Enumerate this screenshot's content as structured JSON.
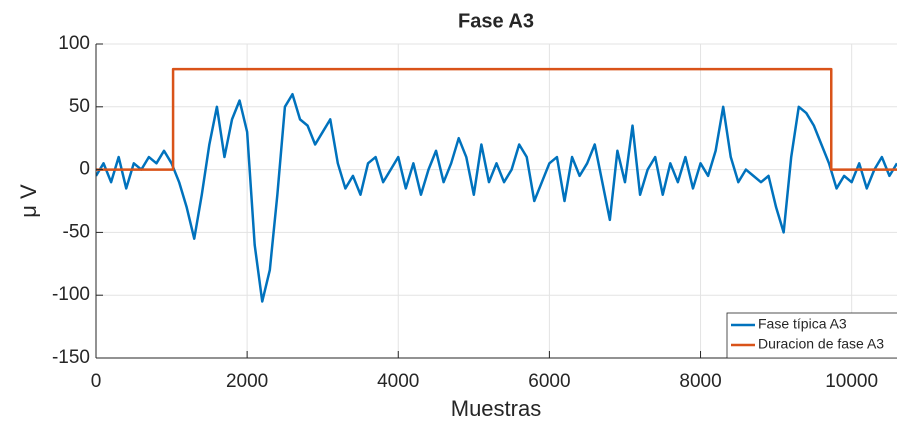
{
  "chart_data": {
    "type": "line",
    "title": "Fase A3",
    "xlabel": "Muestras",
    "ylabel": "μ V",
    "xlim": [
      0,
      10600
    ],
    "ylim": [
      -150,
      100
    ],
    "xticks": [
      0,
      2000,
      4000,
      6000,
      8000,
      10000
    ],
    "yticks": [
      -150,
      -100,
      -50,
      0,
      50,
      100
    ],
    "grid": true,
    "legend": "southeast",
    "series": [
      {
        "name": "Fase típica A3",
        "color": "#0072bd",
        "x": [
          0,
          100,
          200,
          300,
          400,
          500,
          600,
          700,
          800,
          900,
          1000,
          1100,
          1200,
          1300,
          1400,
          1500,
          1600,
          1700,
          1800,
          1900,
          2000,
          2100,
          2200,
          2300,
          2400,
          2500,
          2600,
          2700,
          2800,
          2900,
          3000,
          3100,
          3200,
          3300,
          3400,
          3500,
          3600,
          3700,
          3800,
          3900,
          4000,
          4100,
          4200,
          4300,
          4400,
          4500,
          4600,
          4700,
          4800,
          4900,
          5000,
          5100,
          5200,
          5300,
          5400,
          5500,
          5600,
          5700,
          5800,
          5900,
          6000,
          6100,
          6200,
          6300,
          6400,
          6500,
          6600,
          6700,
          6800,
          6900,
          7000,
          7100,
          7200,
          7300,
          7400,
          7500,
          7600,
          7700,
          7800,
          7900,
          8000,
          8100,
          8200,
          8300,
          8400,
          8500,
          8600,
          8700,
          8800,
          8900,
          9000,
          9100,
          9200,
          9300,
          9400,
          9500,
          9600,
          9700,
          9800,
          9900,
          10000,
          10100,
          10200,
          10300,
          10400,
          10500,
          10600
        ],
        "values": [
          -5,
          5,
          -10,
          10,
          -15,
          5,
          0,
          10,
          5,
          15,
          5,
          -10,
          -30,
          -55,
          -20,
          20,
          50,
          10,
          40,
          55,
          30,
          -60,
          -105,
          -80,
          -20,
          50,
          60,
          40,
          35,
          20,
          30,
          40,
          5,
          -15,
          -5,
          -20,
          5,
          10,
          -10,
          0,
          10,
          -15,
          5,
          -20,
          0,
          15,
          -10,
          5,
          25,
          10,
          -20,
          20,
          -10,
          5,
          -10,
          0,
          20,
          10,
          -25,
          -10,
          5,
          10,
          -25,
          10,
          -5,
          5,
          20,
          -10,
          -40,
          15,
          -10,
          35,
          -20,
          0,
          10,
          -20,
          5,
          -10,
          10,
          -15,
          5,
          -5,
          15,
          50,
          10,
          -10,
          0,
          -5,
          -10,
          -5,
          -30,
          -50,
          10,
          50,
          45,
          35,
          20,
          5,
          -15,
          -5,
          -10,
          5,
          -15,
          0,
          10,
          -5,
          5
        ]
      },
      {
        "name": "Duracion de fase A3",
        "color": "#d95319",
        "x": [
          0,
          1020,
          1020,
          9730,
          9730,
          10600
        ],
        "values": [
          0,
          0,
          80,
          80,
          0,
          0
        ]
      }
    ]
  }
}
